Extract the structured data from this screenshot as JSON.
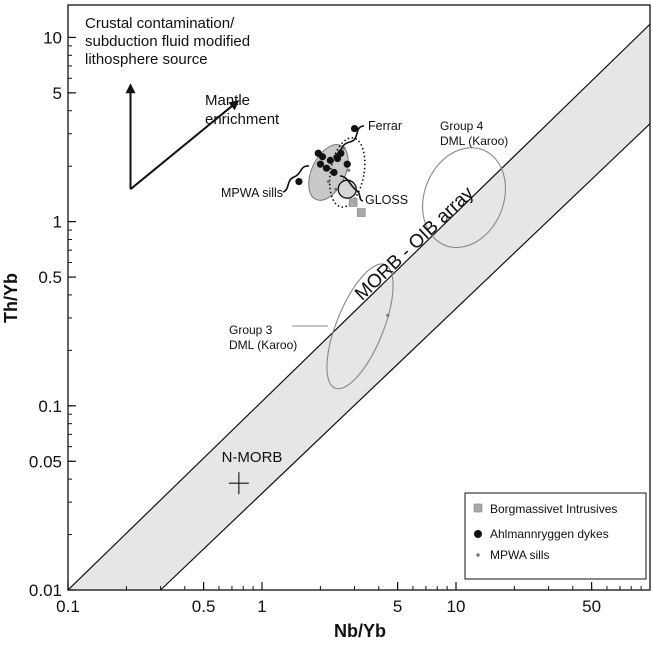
{
  "chart_data": {
    "type": "scatter",
    "xlabel": "Nb/Yb",
    "ylabel": "Th/Yb",
    "xscale": "log",
    "yscale": "log",
    "xlim": [
      0.1,
      100
    ],
    "ylim": [
      0.01,
      15
    ],
    "x_ticks": [
      {
        "value": 0.1,
        "label": "0.1"
      },
      {
        "value": 0.5,
        "label": "0.5"
      },
      {
        "value": 1,
        "label": "1"
      },
      {
        "value": 5,
        "label": "5"
      },
      {
        "value": 10,
        "label": "10"
      },
      {
        "value": 50,
        "label": "50"
      }
    ],
    "y_ticks": [
      {
        "value": 0.01,
        "label": "0.01"
      },
      {
        "value": 0.05,
        "label": "0.05"
      },
      {
        "value": 0.1,
        "label": "0.1"
      },
      {
        "value": 0.5,
        "label": "0.5"
      },
      {
        "value": 1,
        "label": "1"
      },
      {
        "value": 5,
        "label": "5"
      },
      {
        "value": 10,
        "label": "10"
      }
    ],
    "array_band": {
      "label": "MORB - OIB array",
      "upper_line": [
        [
          0.1,
          0.01
        ],
        [
          100,
          11.8
        ]
      ],
      "lower_line": [
        [
          0.3,
          0.01
        ],
        [
          100,
          3.4
        ]
      ],
      "fill": "#e6e6e6"
    },
    "series": [
      {
        "name": "Borgmassivet Intrusives",
        "marker": "square",
        "color": "#a8a8a8",
        "points": [
          [
            2.95,
            1.27
          ],
          [
            3.25,
            1.12
          ]
        ]
      },
      {
        "name": "Ahlmannryggen dykes",
        "marker": "circle",
        "color": "#111111",
        "points": [
          [
            1.55,
            1.65
          ],
          [
            1.95,
            2.35
          ],
          [
            2.05,
            2.25
          ],
          [
            2.0,
            2.05
          ],
          [
            2.15,
            1.95
          ],
          [
            2.25,
            2.15
          ],
          [
            2.35,
            1.85
          ],
          [
            2.45,
            2.2
          ],
          [
            2.55,
            2.35
          ],
          [
            2.75,
            2.05
          ],
          [
            3.0,
            3.2
          ]
        ]
      },
      {
        "name": "MPWA sills",
        "marker": "dot",
        "color": "#777777",
        "points": [
          [
            2.2,
            1.65
          ],
          [
            2.4,
            1.5
          ],
          [
            2.65,
            2.5
          ],
          [
            2.8,
            1.9
          ],
          [
            4.45,
            0.31
          ]
        ]
      }
    ],
    "fields": [
      {
        "label": "Ferrar",
        "type": "shaded-ellipse",
        "cx": 2.2,
        "cy": 1.85,
        "rx_ratio": 1.22,
        "ry_ratio": 1.45
      },
      {
        "label": "MPWA sills",
        "type": "dotted-ellipse",
        "cx": 2.75,
        "cy": 1.85,
        "rx_ratio": 1.22,
        "ry_ratio": 1.55
      },
      {
        "label": "GLOSS",
        "type": "circle",
        "cx": 2.75,
        "cy": 1.5
      },
      {
        "label": "Group 4 DML (Karoo)",
        "type": "ellipse",
        "cx": 11.0,
        "cy": 1.35,
        "rx_ratio": 1.6,
        "ry_ratio": 1.9
      },
      {
        "label": "Group 3 DML (Karoo)",
        "type": "ellipse",
        "cx": 3.2,
        "cy": 0.27,
        "rx_ratio": 1.32,
        "ry_ratio": 2.3
      }
    ],
    "reference_point": {
      "label": "N-MORB",
      "x": 0.76,
      "y": 0.038
    },
    "vectors": [
      {
        "label": "Crustal contamination/ subduction fluid modified lithosphere source",
        "from": [
          0.21,
          1.5
        ],
        "to": [
          0.21,
          5.5
        ]
      },
      {
        "label": "Mantle enrichment",
        "from": [
          0.21,
          1.5
        ],
        "to": [
          0.75,
          4.5
        ]
      }
    ],
    "annotations": {
      "crustal": [
        "Crustal contamination/",
        "subduction fluid modified",
        "lithosphere source"
      ],
      "mantle": [
        "Mantle",
        "enrichment"
      ],
      "ferrar": "Ferrar",
      "mpwa": "MPWA sills",
      "gloss": "GLOSS",
      "group4": [
        "Group 4",
        "DML (Karoo)"
      ],
      "group3": [
        "Group 3",
        "DML (Karoo)"
      ],
      "nmorb": "N-MORB",
      "band": "MORB - OIB array"
    },
    "legend": {
      "position": "bottom-right",
      "items": [
        "Borgmassivet Intrusives",
        "Ahlmannryggen dykes",
        "MPWA sills"
      ]
    }
  }
}
